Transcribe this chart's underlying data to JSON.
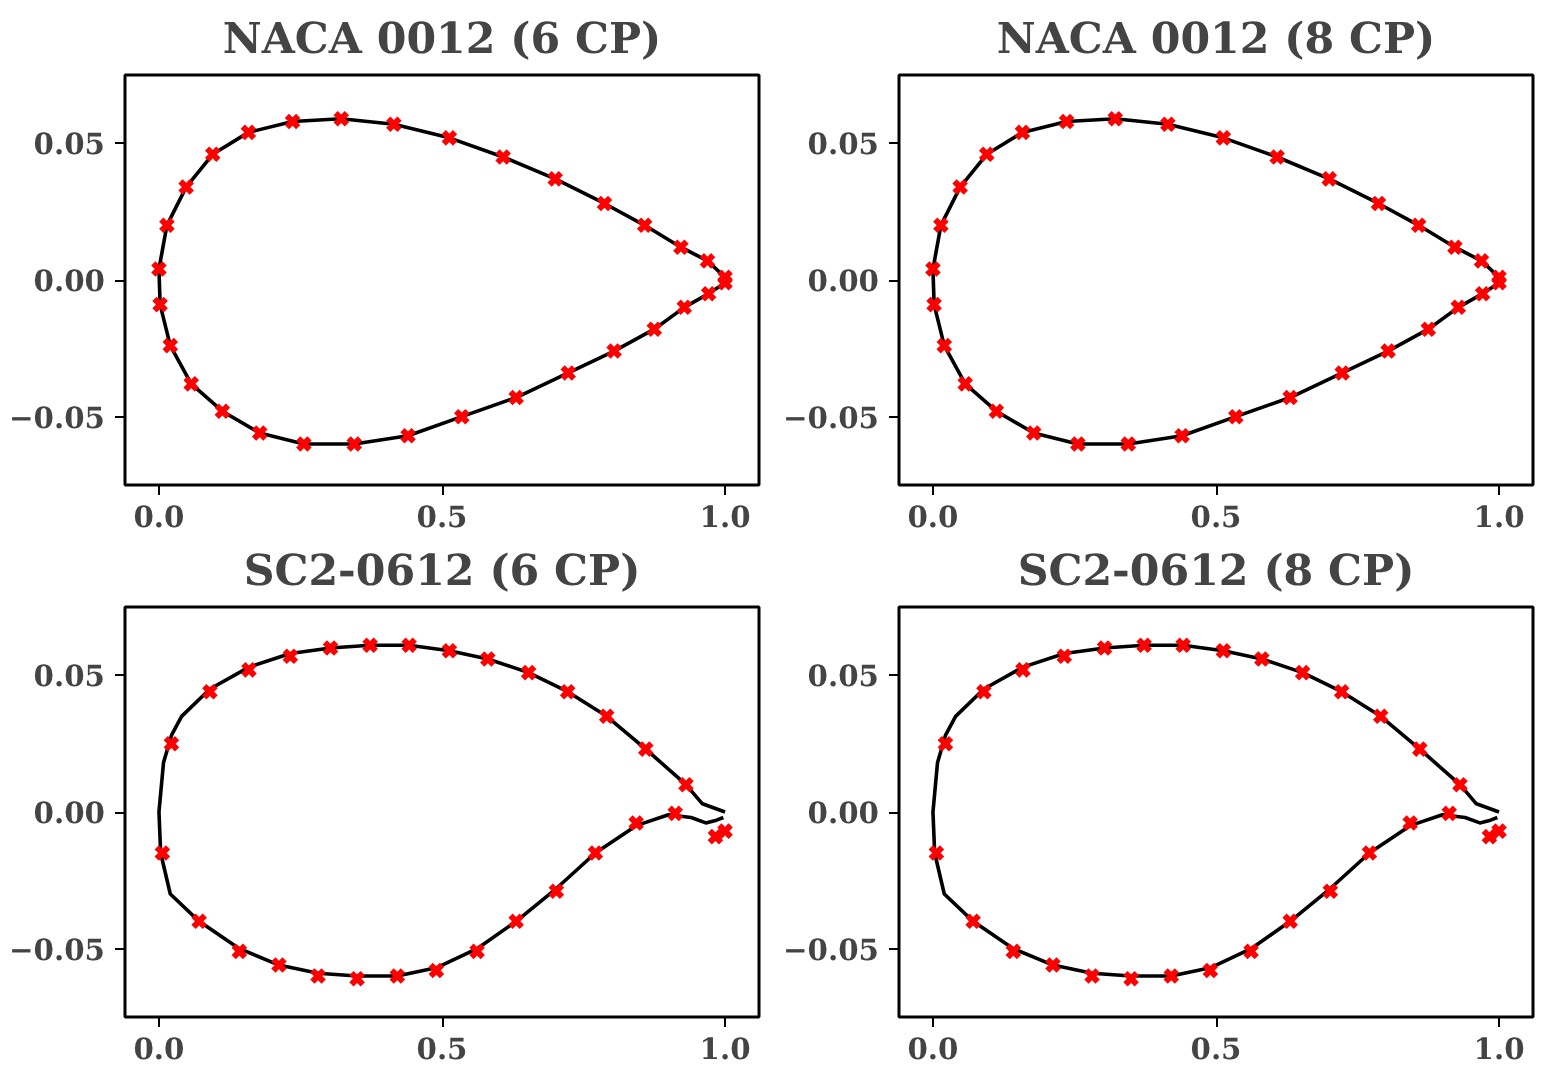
{
  "chart_data": [
    {
      "type": "line",
      "title": "NACA 0012 (6 CP)",
      "xlim": [
        -0.06,
        1.06
      ],
      "ylim": [
        -0.075,
        0.075
      ],
      "xticks": [
        {
          "value": 0,
          "label": "0.0"
        },
        {
          "value": 0.5,
          "label": "0.5"
        },
        {
          "value": 1,
          "label": "1.0"
        }
      ],
      "yticks": [
        {
          "value": -0.05,
          "label": "−0.05"
        },
        {
          "value": 0,
          "label": "0.00"
        },
        {
          "value": 0.05,
          "label": "0.05"
        }
      ],
      "grid": false,
      "series": [
        {
          "type": "line",
          "color": "#000000",
          "line_style": "solid",
          "x": [
            1.0,
            0.969,
            0.922,
            0.858,
            0.787,
            0.7,
            0.608,
            0.513,
            0.415,
            0.322,
            0.236,
            0.158,
            0.095,
            0.048,
            0.014,
            0.0,
            0.002,
            0.02,
            0.057,
            0.112,
            0.178,
            0.256,
            0.345,
            0.44,
            0.535,
            0.631,
            0.723,
            0.804,
            0.875,
            0.928,
            0.971,
            1.0
          ],
          "values": [
            0.001,
            0.007,
            0.012,
            0.02,
            0.028,
            0.037,
            0.045,
            0.052,
            0.057,
            0.059,
            0.058,
            0.054,
            0.046,
            0.034,
            0.02,
            0.004,
            -0.009,
            -0.024,
            -0.038,
            -0.048,
            -0.056,
            -0.06,
            -0.06,
            -0.057,
            -0.05,
            -0.043,
            -0.034,
            -0.026,
            -0.018,
            -0.01,
            -0.005,
            -0.001
          ]
        },
        {
          "type": "scatter",
          "color": "#ff0000",
          "marker": "cross",
          "x": [
            1.0,
            0.969,
            0.922,
            0.858,
            0.787,
            0.7,
            0.608,
            0.513,
            0.415,
            0.322,
            0.236,
            0.158,
            0.095,
            0.048,
            0.014,
            0.0,
            0.002,
            0.02,
            0.057,
            0.112,
            0.178,
            0.256,
            0.345,
            0.44,
            0.535,
            0.631,
            0.723,
            0.804,
            0.875,
            0.928,
            0.971,
            1.0
          ],
          "values": [
            0.001,
            0.007,
            0.012,
            0.02,
            0.028,
            0.037,
            0.045,
            0.052,
            0.057,
            0.059,
            0.058,
            0.054,
            0.046,
            0.034,
            0.02,
            0.004,
            -0.009,
            -0.024,
            -0.038,
            -0.048,
            -0.056,
            -0.06,
            -0.06,
            -0.057,
            -0.05,
            -0.043,
            -0.034,
            -0.026,
            -0.018,
            -0.01,
            -0.005,
            -0.001
          ]
        }
      ]
    },
    {
      "type": "line",
      "title": "NACA 0012 (8 CP)",
      "xlim": [
        -0.06,
        1.06
      ],
      "ylim": [
        -0.075,
        0.075
      ],
      "xticks": [
        {
          "value": 0,
          "label": "0.0"
        },
        {
          "value": 0.5,
          "label": "0.5"
        },
        {
          "value": 1,
          "label": "1.0"
        }
      ],
      "yticks": [
        {
          "value": -0.05,
          "label": "−0.05"
        },
        {
          "value": 0,
          "label": "0.00"
        },
        {
          "value": 0.05,
          "label": "0.05"
        }
      ],
      "grid": false,
      "series": [
        {
          "type": "line",
          "color": "#000000",
          "line_style": "solid",
          "x": [
            1.0,
            0.969,
            0.922,
            0.858,
            0.787,
            0.7,
            0.608,
            0.513,
            0.415,
            0.322,
            0.236,
            0.158,
            0.095,
            0.048,
            0.014,
            0.0,
            0.002,
            0.02,
            0.057,
            0.112,
            0.178,
            0.256,
            0.345,
            0.44,
            0.535,
            0.631,
            0.723,
            0.804,
            0.875,
            0.928,
            0.971,
            1.0
          ],
          "values": [
            0.001,
            0.007,
            0.012,
            0.02,
            0.028,
            0.037,
            0.045,
            0.052,
            0.057,
            0.059,
            0.058,
            0.054,
            0.046,
            0.034,
            0.02,
            0.004,
            -0.009,
            -0.024,
            -0.038,
            -0.048,
            -0.056,
            -0.06,
            -0.06,
            -0.057,
            -0.05,
            -0.043,
            -0.034,
            -0.026,
            -0.018,
            -0.01,
            -0.005,
            -0.001
          ]
        },
        {
          "type": "scatter",
          "color": "#ff0000",
          "marker": "cross",
          "x": [
            1.0,
            0.969,
            0.922,
            0.858,
            0.787,
            0.7,
            0.608,
            0.513,
            0.415,
            0.322,
            0.236,
            0.158,
            0.095,
            0.048,
            0.014,
            0.0,
            0.002,
            0.02,
            0.057,
            0.112,
            0.178,
            0.256,
            0.345,
            0.44,
            0.535,
            0.631,
            0.723,
            0.804,
            0.875,
            0.928,
            0.971,
            1.0
          ],
          "values": [
            0.001,
            0.007,
            0.012,
            0.02,
            0.028,
            0.037,
            0.045,
            0.052,
            0.057,
            0.059,
            0.058,
            0.054,
            0.046,
            0.034,
            0.02,
            0.004,
            -0.009,
            -0.024,
            -0.038,
            -0.048,
            -0.056,
            -0.06,
            -0.06,
            -0.057,
            -0.05,
            -0.043,
            -0.034,
            -0.026,
            -0.018,
            -0.01,
            -0.005,
            -0.001
          ]
        }
      ]
    },
    {
      "type": "line",
      "title": "SC2-0612 (6 CP)",
      "xlim": [
        -0.06,
        1.06
      ],
      "ylim": [
        -0.075,
        0.075
      ],
      "xticks": [
        {
          "value": 0,
          "label": "0.0"
        },
        {
          "value": 0.5,
          "label": "0.5"
        },
        {
          "value": 1,
          "label": "1.0"
        }
      ],
      "yticks": [
        {
          "value": -0.05,
          "label": "−0.05"
        },
        {
          "value": 0,
          "label": "0.00"
        },
        {
          "value": 0.05,
          "label": "0.05"
        }
      ],
      "grid": false,
      "series": [
        {
          "type": "line",
          "color": "#000000",
          "line_style": "solid",
          "x": [
            1.0,
            0.96,
            0.931,
            0.86,
            0.791,
            0.722,
            0.653,
            0.581,
            0.513,
            0.442,
            0.373,
            0.303,
            0.232,
            0.159,
            0.09,
            0.04,
            0.022,
            0.008,
            0.0,
            0.003,
            0.02,
            0.071,
            0.142,
            0.212,
            0.281,
            0.35,
            0.421,
            0.49,
            0.562,
            0.631,
            0.702,
            0.771,
            0.843,
            0.9,
            0.94,
            0.966,
            0.985,
            0.997
          ],
          "values": [
            0.0,
            0.003,
            0.01,
            0.023,
            0.035,
            0.044,
            0.051,
            0.056,
            0.059,
            0.061,
            0.061,
            0.06,
            0.058,
            0.053,
            0.045,
            0.035,
            0.028,
            0.018,
            0.0,
            -0.015,
            -0.03,
            -0.04,
            -0.05,
            -0.056,
            -0.059,
            -0.06,
            -0.06,
            -0.057,
            -0.05,
            -0.04,
            -0.028,
            -0.015,
            -0.005,
            -0.001,
            -0.002,
            -0.004,
            -0.003,
            -0.002
          ]
        },
        {
          "type": "scatter",
          "color": "#ff0000",
          "marker": "cross",
          "x": [
            0.022,
            0.09,
            0.159,
            0.232,
            0.303,
            0.373,
            0.442,
            0.513,
            0.581,
            0.653,
            0.722,
            0.791,
            0.86,
            0.931,
            0.912,
            0.843,
            0.771,
            0.702,
            0.631,
            0.562,
            0.49,
            0.421,
            0.35,
            0.281,
            0.212,
            0.142,
            0.071,
            0.006,
            0.983,
            1.0
          ],
          "values": [
            0.025,
            0.044,
            0.052,
            0.057,
            0.06,
            0.061,
            0.061,
            0.059,
            0.056,
            0.051,
            0.044,
            0.035,
            0.023,
            0.01,
            -0.0005,
            -0.004,
            -0.015,
            -0.029,
            -0.04,
            -0.051,
            -0.058,
            -0.06,
            -0.061,
            -0.06,
            -0.056,
            -0.051,
            -0.04,
            -0.015,
            -0.009,
            -0.007
          ]
        }
      ]
    },
    {
      "type": "line",
      "title": "SC2-0612 (8 CP)",
      "xlim": [
        -0.06,
        1.06
      ],
      "ylim": [
        -0.075,
        0.075
      ],
      "xticks": [
        {
          "value": 0,
          "label": "0.0"
        },
        {
          "value": 0.5,
          "label": "0.5"
        },
        {
          "value": 1,
          "label": "1.0"
        }
      ],
      "yticks": [
        {
          "value": -0.05,
          "label": "−0.05"
        },
        {
          "value": 0,
          "label": "0.00"
        },
        {
          "value": 0.05,
          "label": "0.05"
        }
      ],
      "grid": false,
      "series": [
        {
          "type": "line",
          "color": "#000000",
          "line_style": "solid",
          "x": [
            1.0,
            0.96,
            0.931,
            0.86,
            0.791,
            0.722,
            0.653,
            0.581,
            0.513,
            0.442,
            0.373,
            0.303,
            0.232,
            0.159,
            0.09,
            0.04,
            0.022,
            0.008,
            0.0,
            0.003,
            0.02,
            0.071,
            0.142,
            0.212,
            0.281,
            0.35,
            0.421,
            0.49,
            0.562,
            0.631,
            0.702,
            0.771,
            0.843,
            0.9,
            0.94,
            0.966,
            0.985,
            0.997
          ],
          "values": [
            0.0,
            0.003,
            0.01,
            0.023,
            0.035,
            0.044,
            0.051,
            0.056,
            0.059,
            0.061,
            0.061,
            0.06,
            0.058,
            0.053,
            0.045,
            0.035,
            0.028,
            0.018,
            0.0,
            -0.015,
            -0.03,
            -0.04,
            -0.05,
            -0.056,
            -0.059,
            -0.06,
            -0.06,
            -0.057,
            -0.05,
            -0.04,
            -0.028,
            -0.015,
            -0.005,
            -0.001,
            -0.002,
            -0.004,
            -0.003,
            -0.002
          ]
        },
        {
          "type": "scatter",
          "color": "#ff0000",
          "marker": "cross",
          "x": [
            0.022,
            0.09,
            0.159,
            0.232,
            0.303,
            0.373,
            0.442,
            0.513,
            0.581,
            0.653,
            0.722,
            0.791,
            0.86,
            0.931,
            0.912,
            0.843,
            0.771,
            0.702,
            0.631,
            0.562,
            0.49,
            0.421,
            0.35,
            0.281,
            0.212,
            0.142,
            0.071,
            0.006,
            0.983,
            1.0
          ],
          "values": [
            0.025,
            0.044,
            0.052,
            0.057,
            0.06,
            0.061,
            0.061,
            0.059,
            0.056,
            0.051,
            0.044,
            0.035,
            0.023,
            0.01,
            -0.0005,
            -0.004,
            -0.015,
            -0.029,
            -0.04,
            -0.051,
            -0.058,
            -0.06,
            -0.061,
            -0.06,
            -0.056,
            -0.051,
            -0.04,
            -0.015,
            -0.009,
            -0.007
          ]
        }
      ]
    }
  ]
}
